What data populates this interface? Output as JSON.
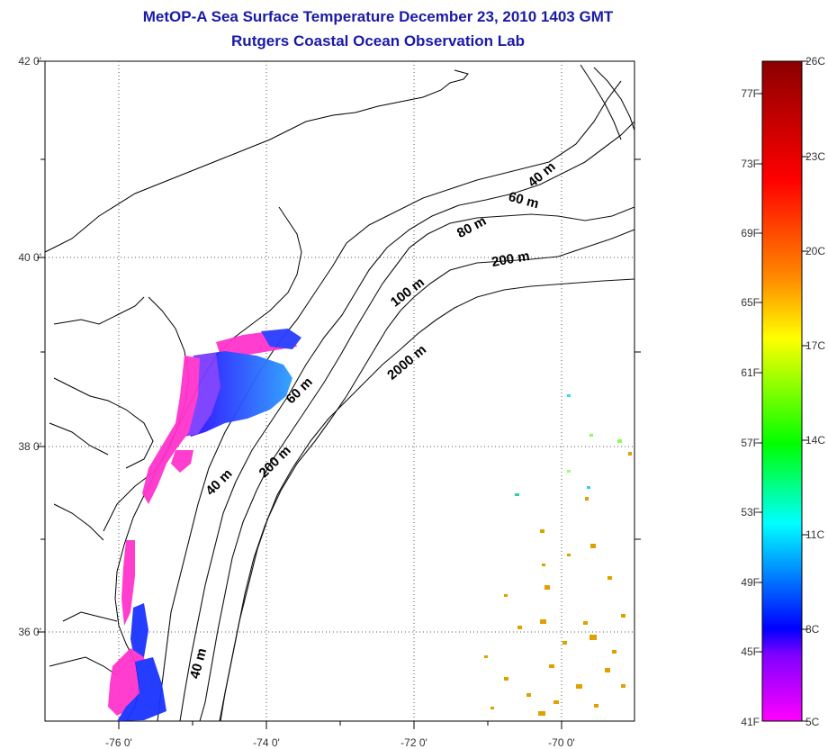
{
  "title": "MetOP-A Sea Surface Temperature December 23, 2010 1403 GMT",
  "subtitle": "Rutgers Coastal Ocean Observation Lab",
  "lat_ticks": [
    "42 0'",
    "40 0'",
    "38 0'",
    "36 0'"
  ],
  "lon_ticks": [
    "-76 0'",
    "-74 0'",
    "-72 0'",
    "-70 0'"
  ],
  "contour_labels": [
    "40 m",
    "60 m",
    "80 m",
    "200 m",
    "100 m",
    "2000 m",
    "60 m",
    "200 m",
    "40 m",
    "40 m"
  ],
  "colorbar": {
    "fahrenheit": [
      "77F",
      "73F",
      "69F",
      "65F",
      "61F",
      "57F",
      "53F",
      "49F",
      "45F",
      "41F"
    ],
    "celsius": [
      "26C",
      "23C",
      "20C",
      "17C",
      "14C",
      "11C",
      "8C",
      "5C"
    ],
    "colors": [
      "#8b0000",
      "#ff0000",
      "#ff8c00",
      "#ffff00",
      "#00ff00",
      "#00ffff",
      "#0000ff",
      "#8000ff",
      "#ff00ff"
    ]
  }
}
